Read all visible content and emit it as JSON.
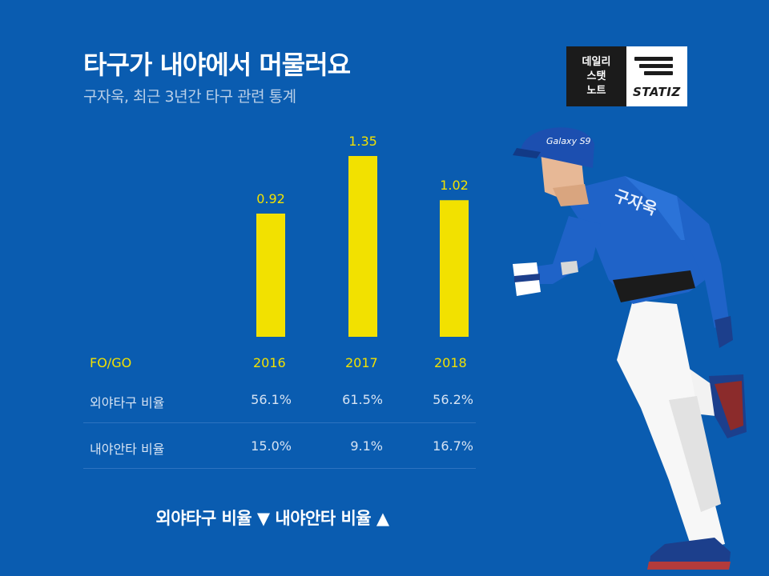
{
  "header": {
    "title": "타구가 내야에서 머물러요",
    "subtitle": "구자욱, 최근 3년간 타구 관련 통계"
  },
  "logo": {
    "line1": "데일리",
    "line2": "스탯",
    "line3": "노트",
    "brand": "STATIZ"
  },
  "chart_data": {
    "type": "bar",
    "title": "",
    "xlabel": "",
    "ylabel": "",
    "categories": [
      "2016",
      "2017",
      "2018"
    ],
    "series": [
      {
        "name": "FO/GO",
        "values": [
          0.92,
          1.35,
          1.02
        ]
      }
    ],
    "value_labels": [
      "0.92",
      "1.35",
      "1.02"
    ],
    "ylim": [
      0,
      1.35
    ],
    "grid": false,
    "legend": "none",
    "colors": {
      "bar": "#f2e100",
      "label": "#f2e100"
    }
  },
  "table": {
    "header_label": "FO/GO",
    "years": [
      "2016",
      "2017",
      "2018"
    ],
    "rows": [
      {
        "label": "외야타구 비율",
        "values": [
          "56.1%",
          "61.5%",
          "56.2%"
        ]
      },
      {
        "label": "내야안타 비율",
        "values": [
          "15.0%",
          "9.1%",
          "16.7%"
        ]
      }
    ]
  },
  "footer": {
    "text": "외야타구 비율 ▼ 내야안타 비율 ▲"
  },
  "player": {
    "cap_text": "Galaxy S9",
    "jersey_text": "구자욱"
  },
  "colors": {
    "background": "#0a5cb0",
    "accent": "#f2e100",
    "jersey": "#1f63c8",
    "pants": "#f2f2f2"
  }
}
